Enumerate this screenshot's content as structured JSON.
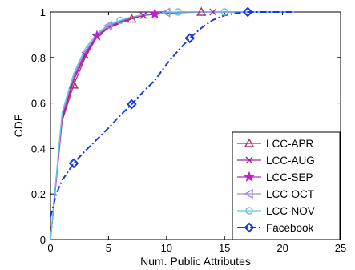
{
  "chart_data": {
    "type": "line",
    "xlabel": "Num. Public Attributes",
    "ylabel": "CDF",
    "xlim": [
      0,
      25
    ],
    "ylim": [
      0,
      1
    ],
    "xticks": [
      "0",
      "5",
      "10",
      "15",
      "20",
      "25"
    ],
    "yticks": [
      "0",
      "0.2",
      "0.4",
      "0.6",
      "0.8",
      "1"
    ],
    "grid": false,
    "legend_position": "bottom-right",
    "series": [
      {
        "name": "LCC-APR",
        "color": "#b0306a",
        "marker": "triangle-up",
        "dash": "solid",
        "x": [
          0,
          1,
          2,
          3,
          4,
          5,
          6,
          7,
          8,
          9,
          10,
          13,
          15,
          21
        ],
        "y": [
          0,
          0.52,
          0.68,
          0.8,
          0.89,
          0.93,
          0.95,
          0.97,
          0.985,
          0.99,
          0.995,
          1.0,
          1.0,
          1.0
        ],
        "markers_x": [
          2,
          7,
          13
        ]
      },
      {
        "name": "LCC-AUG",
        "color": "#a0209a",
        "marker": "x",
        "dash": "solid",
        "x": [
          0,
          1,
          2,
          3,
          4,
          5,
          6,
          7,
          8,
          9,
          10,
          11,
          14,
          21
        ],
        "y": [
          0,
          0.53,
          0.7,
          0.81,
          0.895,
          0.93,
          0.955,
          0.975,
          0.985,
          0.99,
          0.995,
          1.0,
          1.0,
          1.0
        ],
        "markers_x": [
          3,
          8,
          14
        ]
      },
      {
        "name": "LCC-SEP",
        "color": "#c020c8",
        "marker": "star",
        "dash": "solid",
        "x": [
          0,
          1,
          2,
          3,
          4,
          5,
          6,
          7,
          8,
          9,
          10,
          11,
          21
        ],
        "y": [
          0,
          0.54,
          0.71,
          0.82,
          0.895,
          0.935,
          0.96,
          0.975,
          0.987,
          0.992,
          0.997,
          1.0,
          1.0
        ],
        "markers_x": [
          4,
          9
        ]
      },
      {
        "name": "LCC-OCT",
        "color": "#a98adb",
        "marker": "triangle-left",
        "dash": "solid",
        "x": [
          0,
          1,
          2,
          3,
          4,
          5,
          6,
          7,
          8,
          9,
          10,
          11,
          21
        ],
        "y": [
          0,
          0.55,
          0.72,
          0.83,
          0.9,
          0.94,
          0.962,
          0.978,
          0.988,
          0.993,
          0.998,
          1.0,
          1.0
        ],
        "markers_x": [
          5,
          10
        ]
      },
      {
        "name": "LCC-NOV",
        "color": "#5bc8e8",
        "marker": "circle",
        "dash": "solid",
        "x": [
          0,
          1,
          2,
          3,
          4,
          5,
          6,
          7,
          8,
          9,
          10,
          11,
          15,
          21
        ],
        "y": [
          0,
          0.56,
          0.73,
          0.84,
          0.905,
          0.945,
          0.963,
          0.978,
          0.988,
          0.993,
          0.998,
          1.0,
          1.0,
          1.0
        ],
        "markers_x": [
          6,
          11,
          15
        ]
      },
      {
        "name": "Facebook",
        "color": "#1a3ad8",
        "marker": "diamond",
        "dash": "dashdot",
        "x": [
          0,
          0.5,
          1,
          2,
          3,
          4,
          5,
          6,
          7,
          8,
          9,
          10,
          11,
          12,
          13,
          14,
          15,
          16,
          17,
          21
        ],
        "y": [
          0.1,
          0.2,
          0.26,
          0.335,
          0.39,
          0.44,
          0.49,
          0.545,
          0.595,
          0.65,
          0.7,
          0.77,
          0.83,
          0.885,
          0.93,
          0.965,
          0.985,
          0.995,
          1.0,
          1.0
        ],
        "markers_x": [
          2,
          7,
          12,
          17
        ]
      }
    ]
  }
}
